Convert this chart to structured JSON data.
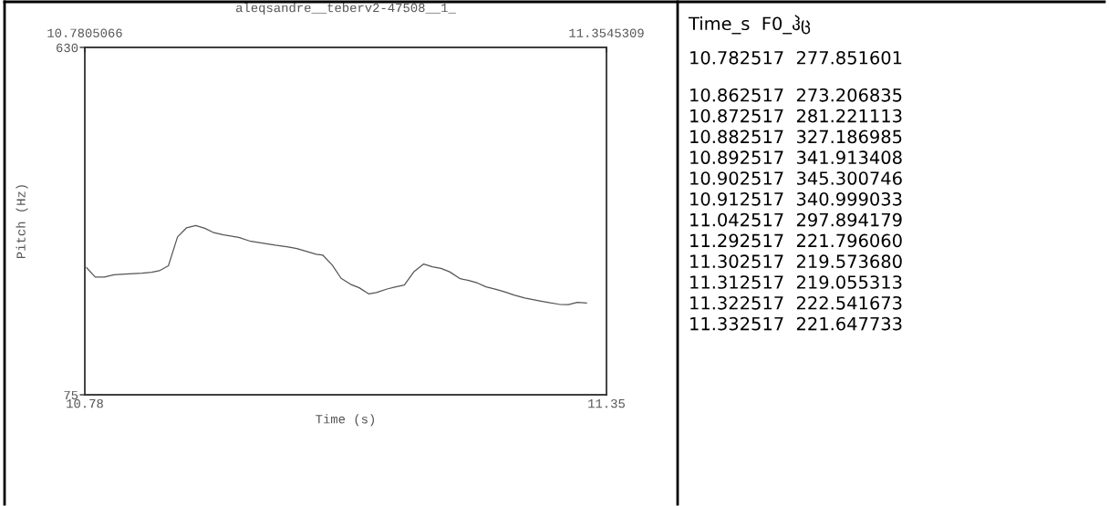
{
  "chart_data": {
    "type": "line",
    "title": "aleqsandre__teberv2-47508__1_",
    "xlabel": "Time (s)",
    "ylabel": "Pitch (Hz)",
    "x": [
      10.782517,
      10.792,
      10.802,
      10.8126,
      10.8245,
      10.8434,
      10.854,
      10.862517,
      10.872517,
      10.882517,
      10.892517,
      10.902517,
      10.912517,
      10.9224,
      10.9333,
      10.9499,
      10.9617,
      10.9759,
      10.9901,
      11.0043,
      11.0138,
      11.0257,
      11.0351,
      11.042517,
      11.0527,
      11.0625,
      11.0729,
      11.0824,
      11.0928,
      11.1013,
      11.1131,
      11.1227,
      11.1321,
      11.1426,
      11.1534,
      11.1629,
      11.1724,
      11.1819,
      11.1936,
      11.203,
      11.2126,
      11.222,
      11.2339,
      11.2433,
      11.2528,
      11.2647,
      11.2813,
      11.292517,
      11.302517,
      11.312517,
      11.322517,
      11.332517
    ],
    "series": [
      {
        "color": "#555555",
        "values": [
          277.851601,
          263,
          263,
          266.6,
          268,
          269.4,
          270.8,
          273.206835,
          281.221113,
          327.186985,
          341.913408,
          345.300746,
          340.999033,
          334,
          330.6,
          326.4,
          320.8,
          317.5,
          314,
          311.2,
          308.6,
          303.6,
          299.5,
          297.894179,
          282.4,
          261.1,
          251.5,
          246,
          236.3,
          238.4,
          244,
          247.5,
          250.2,
          271.6,
          283.9,
          279.6,
          277,
          271.5,
          260.4,
          257.7,
          253.5,
          247.5,
          243.2,
          239.1,
          234.3,
          229.5,
          224.7,
          221.79606,
          219.57368,
          219.055313,
          222.541673,
          221.647733
        ]
      }
    ],
    "xlim": [
      10.7805066,
      11.3545309
    ],
    "xticks": [
      {
        "value": 10.7805066,
        "label": "10.78"
      },
      {
        "value": 11.3545309,
        "label": "11.35"
      }
    ],
    "x2lim": [
      10.7805066,
      11.3545309
    ],
    "x2ticks": [
      10.7805066,
      11.3545309
    ],
    "ylim": [
      75,
      630
    ],
    "yticks": [
      75,
      630
    ],
    "annotations": [
      "Time_s  F0_ჰც",
      "10.782517  277.851601",
      "10.862517  273.206835",
      "10.872517  281.221113",
      "10.882517  327.186985",
      "10.892517  341.913408",
      "10.902517  345.300746",
      "10.912517  340.999033",
      "11.042517  297.894179",
      "11.292517  221.796060",
      "11.302517  219.573680",
      "11.312517  219.055313",
      "11.322517  222.541673",
      "11.332517  221.647733"
    ]
  }
}
